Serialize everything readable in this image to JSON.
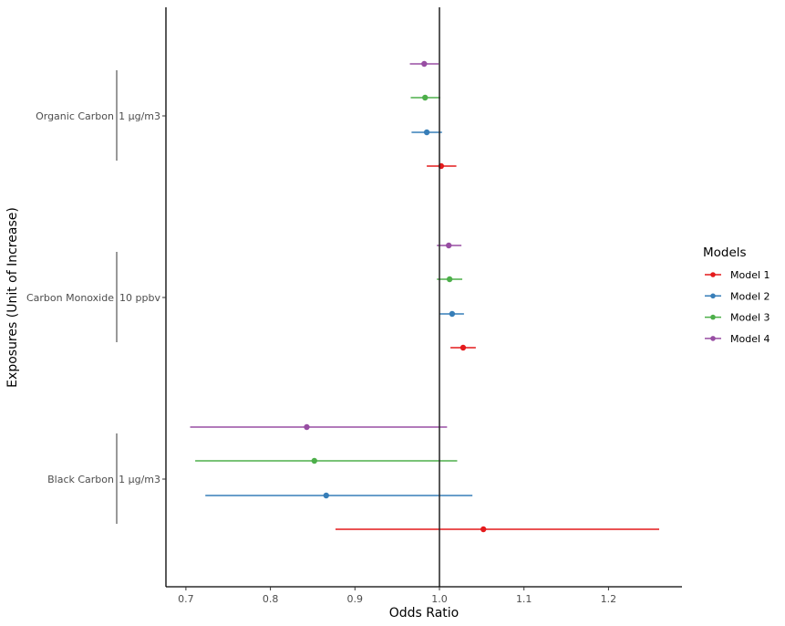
{
  "chart_data": {
    "type": "forest",
    "title": "",
    "xlabel": "Odds Ratio",
    "ylabel": "Exposures (Unit of Increase)",
    "xlim": [
      0.676,
      1.288
    ],
    "x_ticks": [
      0.7,
      0.8,
      0.9,
      1.0,
      1.1,
      1.2
    ],
    "x_tick_labels": [
      "0.7",
      "0.8",
      "0.9",
      "1.0",
      "1.1",
      "1.2"
    ],
    "reference_line": 1.0,
    "grid": false,
    "legend": {
      "title": "Models",
      "position": "right",
      "entries": [
        "Model 1",
        "Model 2",
        "Model 3",
        "Model 4"
      ]
    },
    "colors": {
      "Model 1": "#E41A1C",
      "Model 2": "#377EB8",
      "Model 3": "#4DAF4A",
      "Model 4": "#984EA3"
    },
    "categories": [
      {
        "exposure": "Organic Carbon",
        "unit": "1 µg/m3"
      },
      {
        "exposure": "Carbon Monoxide",
        "unit": "10 ppbv"
      },
      {
        "exposure": "Black Carbon",
        "unit": "1 µg/m3"
      }
    ],
    "series": [
      {
        "name": "Model 1",
        "estimates": [
          1.002,
          1.028,
          1.052
        ],
        "lower": [
          0.985,
          1.013,
          0.877
        ],
        "upper": [
          1.02,
          1.043,
          1.26
        ]
      },
      {
        "name": "Model 2",
        "estimates": [
          0.985,
          1.015,
          0.866
        ],
        "lower": [
          0.967,
          1.0,
          0.723
        ],
        "upper": [
          1.003,
          1.029,
          1.039
        ]
      },
      {
        "name": "Model 3",
        "estimates": [
          0.983,
          1.012,
          0.852
        ],
        "lower": [
          0.966,
          0.997,
          0.711
        ],
        "upper": [
          1.001,
          1.027,
          1.021
        ]
      },
      {
        "name": "Model 4",
        "estimates": [
          0.982,
          1.011,
          0.843
        ],
        "lower": [
          0.965,
          0.997,
          0.705
        ],
        "upper": [
          0.999,
          1.026,
          1.009
        ]
      }
    ]
  }
}
